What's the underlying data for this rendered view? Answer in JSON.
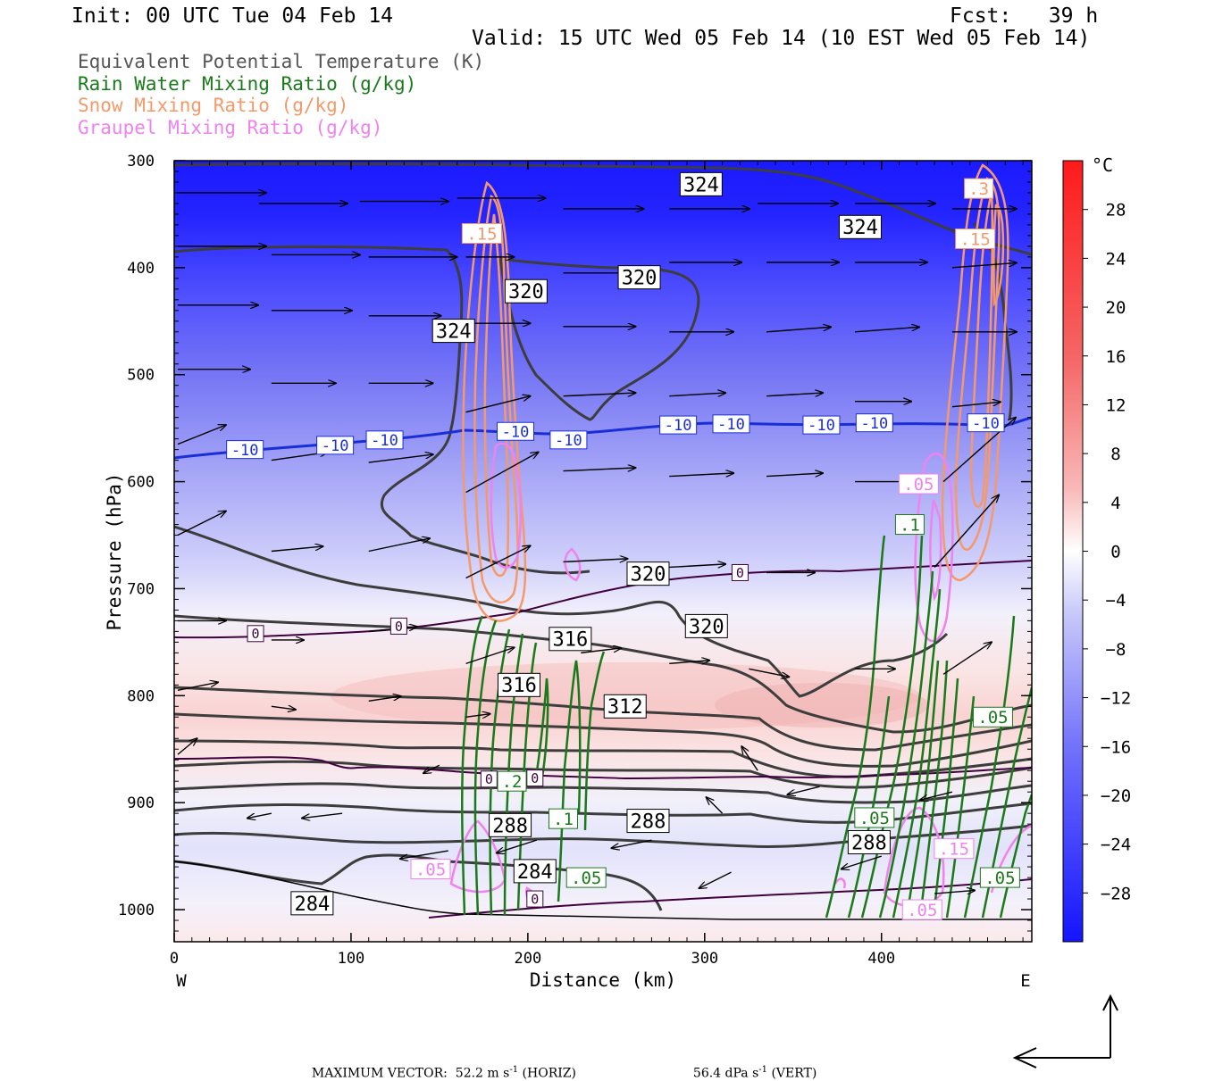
{
  "header": {
    "init": "Init: 00 UTC Tue 04 Feb 14",
    "fcst": "Fcst:   39 h",
    "valid": "Valid: 15 UTC Wed 05 Feb 14 (10 EST Wed 05 Feb 14)"
  },
  "legend": [
    {
      "label": "Equivalent Potential Temperature (K)",
      "color": "#555555"
    },
    {
      "label": "Rain Water Mixing Ratio (g/kg)",
      "color": "#1a7a1a"
    },
    {
      "label": "Snow Mixing Ratio (g/kg)",
      "color": "#f5996a"
    },
    {
      "label": "Graupel Mixing Ratio (g/kg)",
      "color": "#ee82ee"
    }
  ],
  "chart_data": {
    "type": "heatmap",
    "description_kind": "vertical cross-section",
    "xlabel": "Distance (km)",
    "ylabel": "Pressure (hPa)",
    "x_ticks": [
      0,
      100,
      200,
      300,
      400
    ],
    "xlim": [
      0,
      485
    ],
    "y_ticks": [
      300,
      400,
      500,
      600,
      700,
      800,
      900,
      1000
    ],
    "ylim": [
      1030,
      300
    ],
    "x_left_label": "W",
    "x_right_label": "E",
    "colorbar": {
      "unit": "°C",
      "ticks": [
        28,
        24,
        20,
        16,
        12,
        8,
        4,
        0,
        -4,
        -8,
        -12,
        -16,
        -20,
        -24,
        -28
      ],
      "range": [
        -32,
        32
      ]
    },
    "theta_e_labels": [
      {
        "x": 298,
        "p": 322,
        "text": "324"
      },
      {
        "x": 388,
        "p": 362,
        "text": "324"
      },
      {
        "x": 263,
        "p": 409,
        "text": "320"
      },
      {
        "x": 199,
        "p": 422,
        "text": "320"
      },
      {
        "x": 158,
        "p": 459,
        "text": "324"
      },
      {
        "x": 268,
        "p": 686,
        "text": "320"
      },
      {
        "x": 301,
        "p": 735,
        "text": "320"
      },
      {
        "x": 224,
        "p": 747,
        "text": "316"
      },
      {
        "x": 195,
        "p": 790,
        "text": "316"
      },
      {
        "x": 255,
        "p": 810,
        "text": "312"
      },
      {
        "x": 268,
        "p": 917,
        "text": "288"
      },
      {
        "x": 190,
        "p": 921,
        "text": "288"
      },
      {
        "x": 393,
        "p": 937,
        "text": "288"
      },
      {
        "x": 204,
        "p": 964,
        "text": "284"
      },
      {
        "x": 78,
        "p": 994,
        "text": "284"
      }
    ],
    "isotherm_labels": [
      {
        "x": 40,
        "p": 570,
        "text": "-10"
      },
      {
        "x": 91,
        "p": 566,
        "text": "-10"
      },
      {
        "x": 119,
        "p": 561,
        "text": "-10"
      },
      {
        "x": 193,
        "p": 553,
        "text": "-10"
      },
      {
        "x": 223,
        "p": 561,
        "text": "-10"
      },
      {
        "x": 285,
        "p": 547,
        "text": "-10"
      },
      {
        "x": 315,
        "p": 546,
        "text": "-10"
      },
      {
        "x": 366,
        "p": 547,
        "text": "-10"
      },
      {
        "x": 396,
        "p": 545,
        "text": "-10"
      },
      {
        "x": 459,
        "p": 545,
        "text": "-10"
      },
      {
        "x": 46,
        "p": 742,
        "text": "0"
      },
      {
        "x": 127,
        "p": 735,
        "text": "0"
      },
      {
        "x": 320,
        "p": 685,
        "text": "0"
      },
      {
        "x": 178,
        "p": 878,
        "text": "0"
      },
      {
        "x": 204,
        "p": 877,
        "text": "0"
      },
      {
        "x": 204,
        "p": 990,
        "text": "0"
      }
    ],
    "rain_labels": [
      {
        "x": 191,
        "p": 880,
        "text": ".2"
      },
      {
        "x": 220,
        "p": 915,
        "text": ".1"
      },
      {
        "x": 233,
        "p": 970,
        "text": ".05"
      },
      {
        "x": 396,
        "p": 914,
        "text": ".05"
      },
      {
        "x": 416,
        "p": 640,
        "text": ".1"
      },
      {
        "x": 463,
        "p": 820,
        "text": ".05"
      },
      {
        "x": 467,
        "p": 970,
        "text": ".05"
      }
    ],
    "snow_labels": [
      {
        "x": 174,
        "p": 368,
        "text": ".15"
      },
      {
        "x": 453,
        "p": 373,
        "text": ".15"
      },
      {
        "x": 455,
        "p": 326,
        "text": ".3"
      }
    ],
    "graupel_labels": [
      {
        "x": 145,
        "p": 962,
        "text": ".05"
      },
      {
        "x": 423,
        "p": 1000,
        "text": ".05"
      },
      {
        "x": 441,
        "p": 943,
        "text": ".15"
      },
      {
        "x": 421,
        "p": 602,
        "text": ".05"
      }
    ],
    "wind_vectors": [
      {
        "x": 2,
        "p": 330,
        "dx": 0.55,
        "dp": 0.0
      },
      {
        "x": 48,
        "p": 340,
        "dx": 0.55,
        "dp": 0.0
      },
      {
        "x": 2,
        "p": 380,
        "dx": 0.55,
        "dp": 0.0
      },
      {
        "x": 2,
        "p": 435,
        "dx": 0.5,
        "dp": 0.0
      },
      {
        "x": 2,
        "p": 495,
        "dx": 0.45,
        "dp": 0.0
      },
      {
        "x": 2,
        "p": 565,
        "dx": 0.3,
        "dp": -0.12
      },
      {
        "x": 2,
        "p": 650,
        "dx": 0.3,
        "dp": -0.15
      },
      {
        "x": 2,
        "p": 730,
        "dx": 0.3,
        "dp": 0.0
      },
      {
        "x": 2,
        "p": 795,
        "dx": 0.25,
        "dp": -0.05
      },
      {
        "x": 2,
        "p": 855,
        "dx": 0.12,
        "dp": -0.1
      },
      {
        "x": 55,
        "p": 388,
        "dx": 0.55,
        "dp": 0.0
      },
      {
        "x": 55,
        "p": 440,
        "dx": 0.5,
        "dp": 0.0
      },
      {
        "x": 55,
        "p": 508,
        "dx": 0.4,
        "dp": 0.0
      },
      {
        "x": 55,
        "p": 580,
        "dx": 0.35,
        "dp": -0.05
      },
      {
        "x": 55,
        "p": 665,
        "dx": 0.32,
        "dp": -0.03
      },
      {
        "x": 55,
        "p": 748,
        "dx": 0.2,
        "dp": 0.0
      },
      {
        "x": 55,
        "p": 810,
        "dx": 0.15,
        "dp": 0.02
      },
      {
        "x": 105,
        "p": 338,
        "dx": 0.55,
        "dp": 0.0
      },
      {
        "x": 110,
        "p": 390,
        "dx": 0.55,
        "dp": 0.0
      },
      {
        "x": 110,
        "p": 445,
        "dx": 0.45,
        "dp": 0.0
      },
      {
        "x": 110,
        "p": 508,
        "dx": 0.4,
        "dp": 0.0
      },
      {
        "x": 110,
        "p": 582,
        "dx": 0.4,
        "dp": -0.05
      },
      {
        "x": 110,
        "p": 665,
        "dx": 0.38,
        "dp": -0.08
      },
      {
        "x": 110,
        "p": 740,
        "dx": 0.3,
        "dp": -0.03
      },
      {
        "x": 110,
        "p": 805,
        "dx": 0.2,
        "dp": -0.03
      },
      {
        "x": 160,
        "p": 335,
        "dx": 0.55,
        "dp": 0.0
      },
      {
        "x": 165,
        "p": 390,
        "dx": 0.3,
        "dp": 0.0
      },
      {
        "x": 165,
        "p": 452,
        "dx": 0.4,
        "dp": 0.0
      },
      {
        "x": 165,
        "p": 535,
        "dx": 0.4,
        "dp": -0.1
      },
      {
        "x": 165,
        "p": 610,
        "dx": 0.45,
        "dp": -0.25
      },
      {
        "x": 165,
        "p": 690,
        "dx": 0.4,
        "dp": -0.2
      },
      {
        "x": 165,
        "p": 770,
        "dx": 0.3,
        "dp": -0.1
      },
      {
        "x": 165,
        "p": 820,
        "dx": 0.15,
        "dp": -0.02
      },
      {
        "x": 220,
        "p": 345,
        "dx": 0.5,
        "dp": 0.0
      },
      {
        "x": 220,
        "p": 405,
        "dx": 0.45,
        "dp": 0.0
      },
      {
        "x": 220,
        "p": 455,
        "dx": 0.45,
        "dp": 0.0
      },
      {
        "x": 220,
        "p": 520,
        "dx": 0.45,
        "dp": -0.02
      },
      {
        "x": 220,
        "p": 590,
        "dx": 0.45,
        "dp": -0.02
      },
      {
        "x": 220,
        "p": 675,
        "dx": 0.4,
        "dp": -0.02
      },
      {
        "x": 230,
        "p": 760,
        "dx": 0.25,
        "dp": -0.03
      },
      {
        "x": 280,
        "p": 345,
        "dx": 0.5,
        "dp": 0.0
      },
      {
        "x": 280,
        "p": 395,
        "dx": 0.45,
        "dp": 0.0
      },
      {
        "x": 280,
        "p": 460,
        "dx": 0.4,
        "dp": 0.0
      },
      {
        "x": 280,
        "p": 520,
        "dx": 0.35,
        "dp": -0.02
      },
      {
        "x": 280,
        "p": 595,
        "dx": 0.4,
        "dp": -0.02
      },
      {
        "x": 280,
        "p": 680,
        "dx": 0.35,
        "dp": -0.02
      },
      {
        "x": 280,
        "p": 770,
        "dx": 0.25,
        "dp": -0.02
      },
      {
        "x": 330,
        "p": 340,
        "dx": 0.5,
        "dp": 0.0
      },
      {
        "x": 335,
        "p": 395,
        "dx": 0.45,
        "dp": 0.0
      },
      {
        "x": 335,
        "p": 460,
        "dx": 0.4,
        "dp": -0.03
      },
      {
        "x": 335,
        "p": 520,
        "dx": 0.35,
        "dp": -0.02
      },
      {
        "x": 335,
        "p": 595,
        "dx": 0.35,
        "dp": -0.02
      },
      {
        "x": 335,
        "p": 685,
        "dx": 0.3,
        "dp": 0.0
      },
      {
        "x": 325,
        "p": 775,
        "dx": 0.25,
        "dp": 0.05
      },
      {
        "x": 385,
        "p": 340,
        "dx": 0.5,
        "dp": 0.0
      },
      {
        "x": 385,
        "p": 395,
        "dx": 0.45,
        "dp": 0.0
      },
      {
        "x": 385,
        "p": 460,
        "dx": 0.4,
        "dp": -0.03
      },
      {
        "x": 385,
        "p": 525,
        "dx": 0.35,
        "dp": 0.0
      },
      {
        "x": 385,
        "p": 600,
        "dx": 0.35,
        "dp": 0.0
      },
      {
        "x": 385,
        "p": 775,
        "dx": 0.25,
        "dp": 0.0
      },
      {
        "x": 440,
        "p": 345,
        "dx": 0.4,
        "dp": 0.0
      },
      {
        "x": 440,
        "p": 400,
        "dx": 0.4,
        "dp": -0.03
      },
      {
        "x": 440,
        "p": 460,
        "dx": 0.4,
        "dp": 0.0
      },
      {
        "x": 440,
        "p": 530,
        "dx": 0.3,
        "dp": -0.03
      },
      {
        "x": 435,
        "p": 600,
        "dx": 0.45,
        "dp": -0.4
      },
      {
        "x": 430,
        "p": 680,
        "dx": 0.4,
        "dp": -0.45
      },
      {
        "x": 435,
        "p": 780,
        "dx": 0.3,
        "dp": -0.2
      },
      {
        "x": 330,
        "p": 870,
        "dx": -0.1,
        "dp": -0.15
      },
      {
        "x": 400,
        "p": 950,
        "dx": -0.25,
        "dp": 0.08
      },
      {
        "x": 315,
        "p": 965,
        "dx": -0.2,
        "dp": 0.1
      },
      {
        "x": 270,
        "p": 935,
        "dx": -0.25,
        "dp": 0.05
      },
      {
        "x": 205,
        "p": 935,
        "dx": -0.25,
        "dp": 0.08
      },
      {
        "x": 155,
        "p": 945,
        "dx": -0.3,
        "dp": 0.05
      },
      {
        "x": 95,
        "p": 910,
        "dx": -0.25,
        "dp": 0.03
      },
      {
        "x": 55,
        "p": 910,
        "dx": -0.15,
        "dp": 0.03
      },
      {
        "x": 365,
        "p": 885,
        "dx": -0.2,
        "dp": 0.05
      },
      {
        "x": 440,
        "p": 890,
        "dx": -0.2,
        "dp": 0.05
      },
      {
        "x": 150,
        "p": 865,
        "dx": -0.1,
        "dp": 0.05
      },
      {
        "x": 310,
        "p": 910,
        "dx": -0.1,
        "dp": -0.1
      },
      {
        "x": 430,
        "p": 985,
        "dx": 0.25,
        "dp": -0.02
      }
    ]
  },
  "footer": {
    "max_label": "MAXIMUM VECTOR:",
    "horiz_value": "52.2 m s",
    "horiz_exp": "-1",
    "horiz_tag": "(HORIZ)",
    "vert_value": "56.4 dPa s",
    "vert_exp": "-1",
    "vert_tag": "(VERT)"
  }
}
